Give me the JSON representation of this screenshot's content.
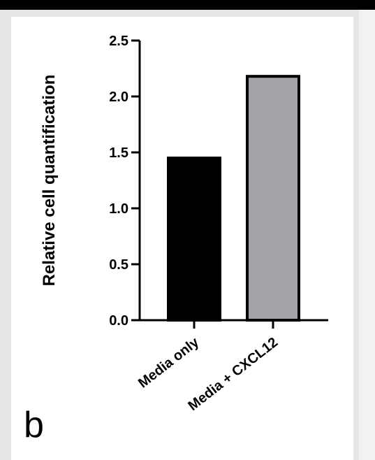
{
  "panel_label": "b",
  "chart_data": {
    "type": "bar",
    "categories": [
      "Media only",
      "Media + CXCL12"
    ],
    "values": [
      1.45,
      2.18
    ],
    "colors": [
      "#000000",
      "#a3a3a8"
    ],
    "title": "",
    "xlabel": "",
    "ylabel": "Relative cell quantification",
    "ylim": [
      0,
      2.5
    ],
    "yticks": [
      "0.0",
      "0.5",
      "1.0",
      "1.5",
      "2.0",
      "2.5"
    ],
    "grid": false,
    "legend": "none"
  }
}
